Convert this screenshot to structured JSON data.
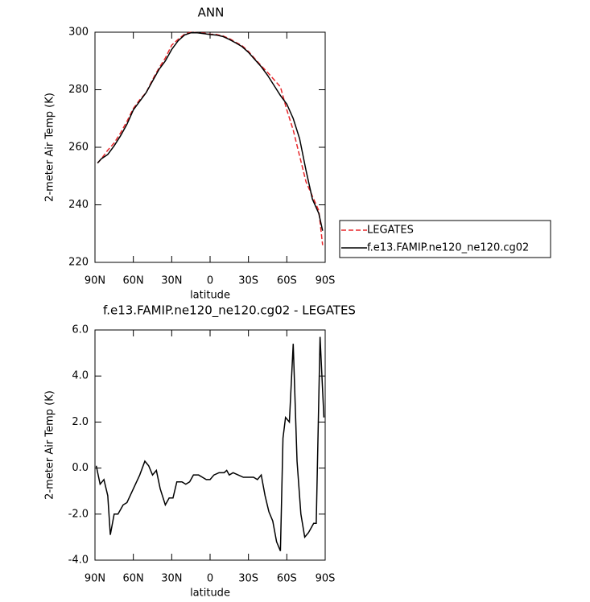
{
  "chart_data": [
    {
      "type": "line",
      "title": "ANN",
      "ylabel": "2-meter Air Temp (K)",
      "xlabel": "latitude",
      "x": [
        88,
        85,
        80,
        75,
        70,
        65,
        60,
        55,
        50,
        45,
        40,
        35,
        30,
        25,
        20,
        15,
        10,
        5,
        0,
        -5,
        -10,
        -15,
        -20,
        -25,
        -30,
        -35,
        -40,
        -45,
        -50,
        -55,
        -60,
        -65,
        -70,
        -75,
        -80,
        -85,
        -88
      ],
      "series": [
        {
          "name": "LEGATES",
          "color": "#e8262a",
          "dashed": true,
          "values": [
            254.5,
            256,
            259,
            261.5,
            265,
            269,
            273.5,
            276.5,
            279,
            283.5,
            287.5,
            291,
            295.5,
            297.5,
            299.3,
            300,
            299.8,
            299.7,
            299.3,
            299.2,
            298.7,
            297.8,
            296.5,
            295.3,
            293.3,
            290.8,
            288.3,
            286,
            283.5,
            281,
            273,
            266,
            257,
            248,
            243,
            238,
            226
          ]
        },
        {
          "name": "f.e13.FAMIP.ne120_ne120.cg02",
          "color": "#000000",
          "dashed": false,
          "values": [
            254.5,
            256,
            257.5,
            260.5,
            264,
            268,
            273,
            276,
            279,
            283,
            287,
            290,
            294,
            297,
            299,
            299.8,
            299.8,
            299.5,
            299.2,
            299,
            298.5,
            297.5,
            296.3,
            295,
            293,
            290.5,
            288,
            285,
            281.5,
            278,
            275,
            270,
            263,
            252,
            242,
            237,
            231
          ]
        }
      ],
      "xlim": [
        90,
        -90
      ],
      "xticks": [
        {
          "value": 90,
          "label": "90N"
        },
        {
          "value": 60,
          "label": "60N"
        },
        {
          "value": 30,
          "label": "30N"
        },
        0,
        {
          "value": -30,
          "label": "30S"
        },
        {
          "value": -60,
          "label": "60S"
        },
        {
          "value": -90,
          "label": "90S"
        }
      ],
      "ylim": [
        220,
        300
      ],
      "yticks": [
        220,
        240,
        260,
        280,
        300
      ],
      "legend": "right"
    },
    {
      "type": "line",
      "title": "f.e13.FAMIP.ne120_ne120.cg02 - LEGATES",
      "ylabel": "2-meter Air Temp (K)",
      "xlabel": "latitude",
      "x": [
        89,
        86,
        83,
        80,
        78,
        75,
        72,
        68,
        65,
        60,
        55,
        51,
        48,
        45,
        42,
        39,
        35,
        32,
        29,
        26,
        22,
        19,
        16,
        13,
        9,
        6,
        3,
        0,
        -3,
        -7,
        -11,
        -13,
        -15,
        -18,
        -22,
        -26,
        -30,
        -34,
        -37,
        -40,
        -43,
        -46,
        -49,
        -52,
        -55,
        -57,
        -59,
        -62,
        -65,
        -68,
        -71,
        -74,
        -77,
        -81,
        -83,
        -86,
        -89
      ],
      "values": [
        0.1,
        -0.7,
        -0.5,
        -1.2,
        -2.9,
        -2.0,
        -2.0,
        -1.6,
        -1.5,
        -0.9,
        -0.3,
        0.3,
        0.1,
        -0.3,
        -0.1,
        -0.9,
        -1.6,
        -1.3,
        -1.3,
        -0.6,
        -0.6,
        -0.7,
        -0.6,
        -0.3,
        -0.3,
        -0.4,
        -0.5,
        -0.5,
        -0.3,
        -0.2,
        -0.2,
        -0.1,
        -0.3,
        -0.2,
        -0.3,
        -0.4,
        -0.4,
        -0.4,
        -0.5,
        -0.3,
        -1.2,
        -1.9,
        -2.3,
        -3.2,
        -3.6,
        1.3,
        2.2,
        2.0,
        5.4,
        0.3,
        -2.0,
        -3.0,
        -2.8,
        -2.4,
        -2.4,
        5.7,
        2.2
      ],
      "color": "#000000",
      "xlim": [
        90,
        -90
      ],
      "xticks": [
        {
          "value": 90,
          "label": "90N"
        },
        {
          "value": 60,
          "label": "60N"
        },
        {
          "value": 30,
          "label": "30N"
        },
        0,
        {
          "value": -30,
          "label": "30S"
        },
        {
          "value": -60,
          "label": "60S"
        },
        {
          "value": -90,
          "label": "90S"
        }
      ],
      "ylim": [
        -4,
        6
      ],
      "yticks": [
        {
          "value": -4,
          "label": "-4.0"
        },
        {
          "value": -2,
          "label": "-2.0"
        },
        {
          "value": 0,
          "label": "0.0"
        },
        {
          "value": 2,
          "label": "2.0"
        },
        {
          "value": 4,
          "label": "4.0"
        },
        {
          "value": 6,
          "label": "6.0"
        }
      ]
    }
  ]
}
